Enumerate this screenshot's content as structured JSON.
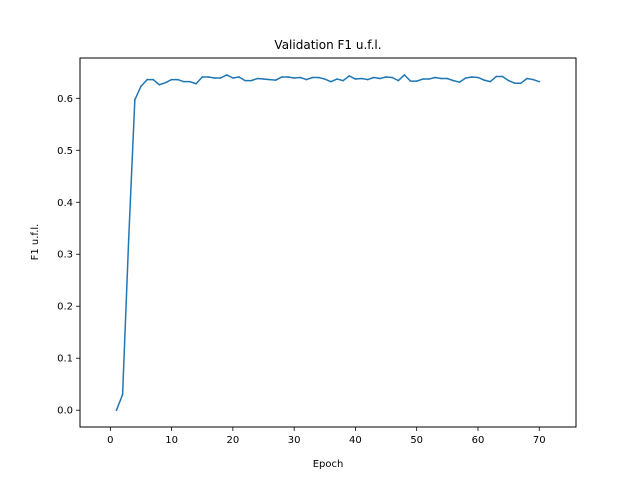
{
  "chart_data": {
    "type": "line",
    "title": "Validation F1 u.f.l.",
    "xlabel": "Epoch",
    "ylabel": "F1 u.f.l.",
    "xlim": [
      -4.95,
      76.0
    ],
    "ylim": [
      -0.0323,
      0.6775
    ],
    "x_ticks": [
      0,
      10,
      20,
      30,
      40,
      50,
      60,
      70
    ],
    "y_ticks": [
      0.0,
      0.1,
      0.2,
      0.3,
      0.4,
      0.5,
      0.6
    ],
    "y_tick_labels": [
      "0.0",
      "0.1",
      "0.2",
      "0.3",
      "0.4",
      "0.5",
      "0.6"
    ],
    "grid": false,
    "line_color": "#1f77b4",
    "series": [
      {
        "x": [
          1,
          2,
          3,
          4,
          5,
          6,
          7,
          8,
          9,
          10,
          11,
          12,
          13,
          14,
          15,
          16,
          17,
          18,
          19,
          20,
          21,
          22,
          23,
          24,
          25,
          26,
          27,
          28,
          29,
          30,
          31,
          32,
          33,
          34,
          35,
          36,
          37,
          38,
          39,
          40,
          41,
          42,
          43,
          44,
          45,
          46,
          47,
          48,
          49,
          50,
          51,
          52,
          53,
          54,
          55,
          56,
          57,
          58,
          59,
          60,
          61,
          62,
          63,
          64,
          65,
          66,
          67,
          68,
          69,
          70
        ],
        "values": [
          0.0,
          0.03,
          0.33,
          0.597,
          0.623,
          0.636,
          0.636,
          0.626,
          0.63,
          0.636,
          0.636,
          0.632,
          0.632,
          0.628,
          0.641,
          0.641,
          0.639,
          0.639,
          0.645,
          0.639,
          0.641,
          0.634,
          0.634,
          0.638,
          0.637,
          0.636,
          0.635,
          0.641,
          0.641,
          0.639,
          0.64,
          0.636,
          0.64,
          0.64,
          0.637,
          0.632,
          0.637,
          0.634,
          0.643,
          0.637,
          0.638,
          0.636,
          0.64,
          0.638,
          0.641,
          0.64,
          0.634,
          0.645,
          0.633,
          0.633,
          0.637,
          0.637,
          0.64,
          0.638,
          0.638,
          0.634,
          0.631,
          0.639,
          0.641,
          0.64,
          0.635,
          0.632,
          0.642,
          0.642,
          0.634,
          0.629,
          0.629,
          0.638,
          0.636,
          0.632
        ]
      }
    ]
  }
}
